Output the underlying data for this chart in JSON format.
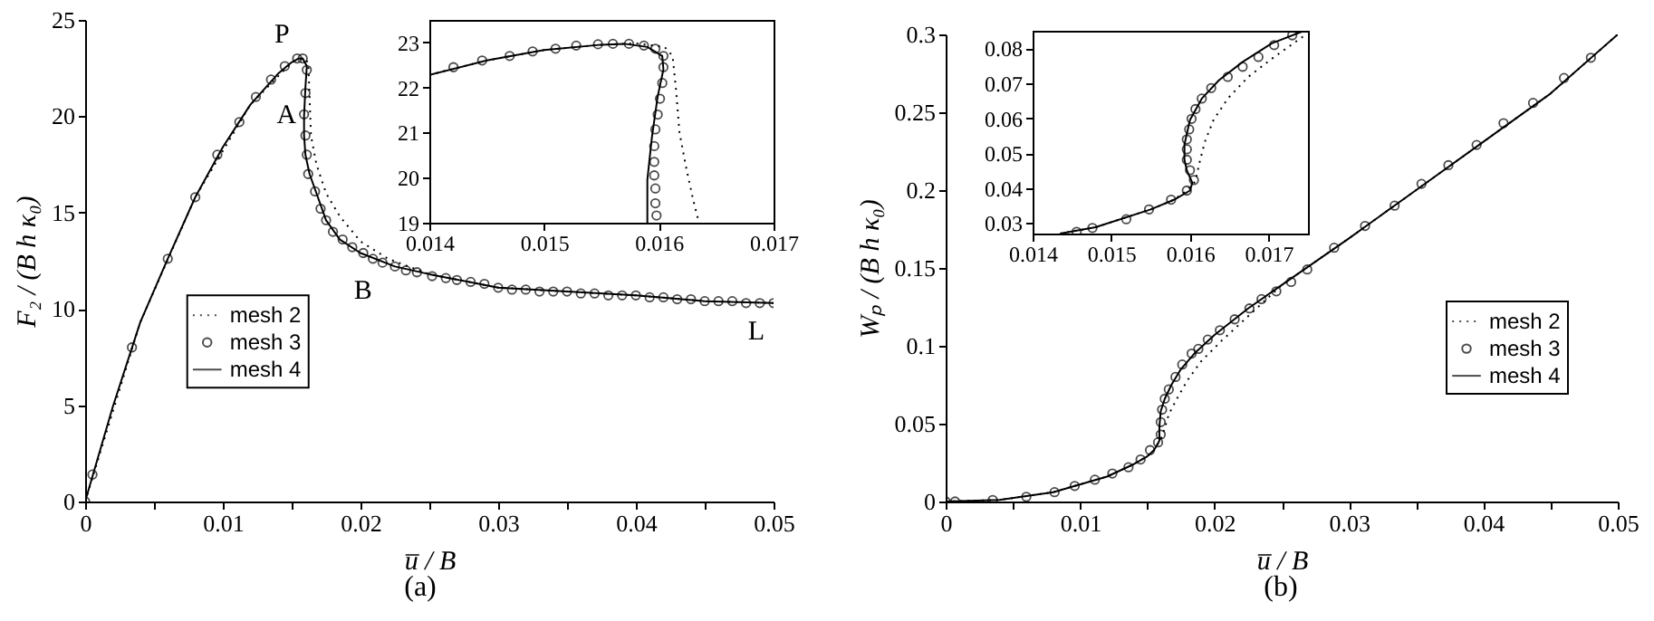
{
  "chart_data": [
    {
      "type": "line",
      "xlabel": "u̅ / B",
      "ylabel": "F₂ / (B h κ₀)",
      "xlim": [
        0,
        0.05
      ],
      "ylim": [
        0,
        25
      ],
      "xticks": [
        0,
        {
          "value": 0.005,
          "label": null
        },
        0.01,
        {
          "value": 0.015,
          "label": null
        },
        0.02,
        {
          "value": 0.025,
          "label": null
        },
        0.03,
        {
          "value": 0.035,
          "label": null
        },
        0.04,
        {
          "value": 0.045,
          "label": null
        },
        0.05
      ],
      "yticks": [
        0,
        5,
        10,
        15,
        20,
        25
      ],
      "legend": "left",
      "series": [
        {
          "name": "mesh 2",
          "color": "#000000",
          "line_style": "dotted",
          "x": [
            0,
            0.004,
            0.008,
            0.012,
            0.015,
            0.0158,
            0.0162,
            0.0163,
            0.0164,
            0.0168,
            0.0175,
            0.0185,
            0.02,
            0.022,
            0.025,
            0.03,
            0.035,
            0.04,
            0.045,
            0.05
          ],
          "values": [
            0,
            9.3,
            15.8,
            20.6,
            22.8,
            23.0,
            22.8,
            21.0,
            19.0,
            17.5,
            16.0,
            14.8,
            13.5,
            12.6,
            11.8,
            11.1,
            10.9,
            10.7,
            10.4,
            10.3
          ]
        },
        {
          "name": "mesh 3",
          "type": "scatter",
          "marker": "circle",
          "color": "#000000",
          "x": [
            0,
            0.00053,
            0.0034,
            0.006,
            0.008,
            0.0096,
            0.0112,
            0.0124,
            0.0135,
            0.0145,
            0.0154,
            0.0158,
            0.0161,
            0.016,
            0.0159,
            0.016,
            0.0161,
            0.0162,
            0.0167,
            0.0171,
            0.0175,
            0.018,
            0.0187,
            0.0194,
            0.0202,
            0.0209,
            0.0216,
            0.0225,
            0.0233,
            0.0241,
            0.0252,
            0.0262,
            0.027,
            0.028,
            0.029,
            0.03,
            0.031,
            0.032,
            0.033,
            0.034,
            0.035,
            0.036,
            0.037,
            0.038,
            0.039,
            0.04,
            0.041,
            0.042,
            0.043,
            0.044,
            0.045,
            0.046,
            0.047,
            0.048,
            0.049,
            0.05
          ],
          "values": [
            0,
            1.4,
            8.0,
            12.6,
            15.8,
            18.0,
            19.7,
            21.0,
            21.9,
            22.6,
            23.0,
            23.0,
            22.4,
            21.2,
            20.1,
            19.0,
            18.0,
            17.0,
            16.1,
            15.2,
            14.6,
            14.0,
            13.6,
            13.2,
            12.9,
            12.6,
            12.4,
            12.2,
            12.0,
            11.9,
            11.7,
            11.6,
            11.5,
            11.4,
            11.3,
            11.1,
            11.0,
            11.0,
            10.9,
            10.9,
            10.9,
            10.8,
            10.8,
            10.7,
            10.7,
            10.7,
            10.6,
            10.6,
            10.5,
            10.5,
            10.4,
            10.4,
            10.4,
            10.3,
            10.3,
            10.3
          ]
        },
        {
          "name": "mesh 4",
          "color": "#000000",
          "line_style": "solid",
          "x": [
            0,
            0.002,
            0.004,
            0.006,
            0.008,
            0.01,
            0.012,
            0.014,
            0.015,
            0.0155,
            0.0158,
            0.0161,
            0.016,
            0.0159,
            0.0159,
            0.016,
            0.0163,
            0.0168,
            0.0175,
            0.0185,
            0.02,
            0.0225,
            0.025,
            0.03,
            0.035,
            0.04,
            0.045,
            0.05
          ],
          "values": [
            0,
            4.9,
            9.3,
            12.6,
            15.8,
            18.4,
            20.6,
            22.2,
            22.8,
            23.0,
            23.0,
            22.6,
            21.5,
            20.0,
            19.0,
            18.0,
            17.0,
            16.0,
            14.6,
            13.6,
            12.9,
            12.2,
            11.8,
            11.1,
            10.9,
            10.7,
            10.4,
            10.3
          ]
        }
      ],
      "annotations": [
        {
          "text": "P",
          "x": 0.0155,
          "y": 23.0
        },
        {
          "text": "A",
          "x": 0.016,
          "y": 18.8
        },
        {
          "text": "B",
          "x": 0.0215,
          "y": 12.4
        },
        {
          "text": "L",
          "x": 0.05,
          "y": 10.3
        },
        "(a)"
      ]
    },
    {
      "type": "line",
      "xlim": [
        0.014,
        0.017
      ],
      "ylim": [
        19,
        23.5
      ],
      "xticks": [
        0.014,
        0.015,
        0.016,
        0.017
      ],
      "yticks": [
        19,
        20,
        21,
        22,
        23
      ],
      "series": [
        {
          "color": "#000000",
          "line_style": "dotted",
          "x": [
            0.014,
            0.0145,
            0.015,
            0.0155,
            0.0158,
            0.01605,
            0.01612,
            0.01615,
            0.01618,
            0.01624,
            0.0163,
            0.01635
          ],
          "values": [
            22.28,
            22.6,
            22.83,
            22.95,
            22.98,
            22.9,
            22.7,
            21.95,
            21.0,
            20.2,
            19.5,
            19.0
          ]
        },
        {
          "type": "scatter",
          "marker": "circle",
          "color": "#000000",
          "x": [
            0.01421,
            0.01446,
            0.0147,
            0.0149,
            0.0151,
            0.01528,
            0.01547,
            0.0156,
            0.01574,
            0.01587,
            0.01597,
            0.01604,
            0.01604,
            0.01603,
            0.01601,
            0.01599,
            0.01597,
            0.01596,
            0.01596,
            0.01596,
            0.01597,
            0.01597,
            0.01598
          ],
          "values": [
            22.45,
            22.6,
            22.7,
            22.8,
            22.86,
            22.93,
            22.96,
            22.97,
            22.97,
            22.93,
            22.86,
            22.7,
            22.45,
            22.1,
            21.75,
            21.4,
            21.07,
            20.7,
            20.35,
            20.05,
            19.76,
            19.43,
            19.16
          ]
        },
        {
          "color": "#000000",
          "line_style": "solid",
          "x": [
            0.014,
            0.0145,
            0.015,
            0.0155,
            0.0157,
            0.0159,
            0.01603,
            0.01604,
            0.01599,
            0.01594,
            0.0159,
            0.0159
          ],
          "values": [
            22.28,
            22.6,
            22.83,
            22.95,
            22.97,
            22.9,
            22.7,
            22.4,
            21.8,
            20.9,
            19.95,
            19.0
          ]
        }
      ]
    },
    {
      "type": "line",
      "xlabel": "u̅ / B",
      "ylabel": "Wₚ / (B h κ₀)",
      "xlim": [
        0,
        0.05
      ],
      "ylim": [
        0,
        0.3
      ],
      "xticks": [
        0,
        {
          "value": 0.005,
          "label": null
        },
        0.01,
        {
          "value": 0.015,
          "label": null
        },
        0.02,
        {
          "value": 0.025,
          "label": null
        },
        0.03,
        {
          "value": 0.035,
          "label": null
        },
        0.04,
        {
          "value": 0.045,
          "label": null
        },
        0.05
      ],
      "yticks": [
        0,
        0.05,
        0.1,
        0.15,
        0.2,
        0.25,
        0.3
      ],
      "legend": "right",
      "series": [
        {
          "name": "mesh 2",
          "color": "#000000",
          "line_style": "dotted",
          "x": [
            0,
            0.004,
            0.008,
            0.012,
            0.014,
            0.015,
            0.0155,
            0.016,
            0.0163,
            0.0166,
            0.0172,
            0.018,
            0.019,
            0.0205,
            0.022,
            0.025,
            0.03,
            0.035,
            0.04,
            0.045,
            0.05
          ],
          "values": [
            0,
            0.001,
            0.006,
            0.016,
            0.024,
            0.029,
            0.033,
            0.04,
            0.047,
            0.056,
            0.066,
            0.078,
            0.09,
            0.103,
            0.115,
            0.139,
            0.169,
            0.2,
            0.231,
            0.262,
            0.3
          ]
        },
        {
          "name": "mesh 3",
          "type": "scatter",
          "marker": "circle",
          "color": "#000000",
          "x": [
            0,
            0.0007,
            0.0035,
            0.006,
            0.0081,
            0.0096,
            0.0111,
            0.0124,
            0.0136,
            0.0145,
            0.0152,
            0.0158,
            0.016,
            0.016,
            0.0161,
            0.0163,
            0.0166,
            0.0171,
            0.0176,
            0.0183,
            0.0188,
            0.0195,
            0.0204,
            0.0215,
            0.0226,
            0.0235,
            0.0246,
            0.0257,
            0.0269,
            0.0289,
            0.0312,
            0.0334,
            0.0354,
            0.0374,
            0.0395,
            0.0415,
            0.0437,
            0.046,
            0.048
          ],
          "values": [
            0,
            0,
            0.001,
            0.003,
            0.006,
            0.01,
            0.014,
            0.018,
            0.022,
            0.027,
            0.033,
            0.038,
            0.043,
            0.051,
            0.059,
            0.066,
            0.072,
            0.08,
            0.088,
            0.095,
            0.098,
            0.104,
            0.11,
            0.117,
            0.124,
            0.13,
            0.135,
            0.141,
            0.149,
            0.163,
            0.177,
            0.19,
            0.204,
            0.216,
            0.229,
            0.243,
            0.256,
            0.272,
            0.285
          ]
        },
        {
          "name": "mesh 4",
          "color": "#000000",
          "line_style": "solid",
          "x": [
            0,
            0.004,
            0.008,
            0.012,
            0.014,
            0.015,
            0.0155,
            0.0159,
            0.0159,
            0.016,
            0.0163,
            0.0168,
            0.0175,
            0.0185,
            0.02,
            0.0225,
            0.025,
            0.03,
            0.035,
            0.04,
            0.045,
            0.05
          ],
          "values": [
            0,
            0.001,
            0.006,
            0.016,
            0.024,
            0.029,
            0.033,
            0.039,
            0.048,
            0.058,
            0.066,
            0.075,
            0.085,
            0.095,
            0.107,
            0.124,
            0.139,
            0.169,
            0.2,
            0.231,
            0.262,
            0.3
          ]
        }
      ],
      "annotations": [
        "(b)"
      ]
    },
    {
      "type": "line",
      "xlim": [
        0.014,
        0.0175
      ],
      "ylim": [
        0.027,
        0.085
      ],
      "xticks": [
        0.014,
        0.015,
        0.016,
        0.017
      ],
      "yticks": [
        0.03,
        0.04,
        0.05,
        0.06,
        0.07,
        0.08
      ],
      "series": [
        {
          "color": "#000000",
          "line_style": "dotted",
          "x": [
            0.01435,
            0.0148,
            0.0155,
            0.0158,
            0.01596,
            0.01607,
            0.01612,
            0.01619,
            0.0163,
            0.01648,
            0.01674,
            0.01704,
            0.01746
          ],
          "values": [
            0.027,
            0.0288,
            0.0339,
            0.0367,
            0.0393,
            0.042,
            0.0472,
            0.0533,
            0.0595,
            0.0656,
            0.0718,
            0.077,
            0.0837
          ]
        },
        {
          "type": "scatter",
          "marker": "circle",
          "color": "#000000",
          "x": [
            0.01456,
            0.01476,
            0.01519,
            0.01548,
            0.01576,
            0.01596,
            0.01605,
            0.016,
            0.01596,
            0.01596,
            0.01596,
            0.01599,
            0.01602,
            0.01607,
            0.01615,
            0.01627,
            0.01648,
            0.01667,
            0.01687,
            0.01707,
            0.0173
          ],
          "values": [
            0.0275,
            0.0286,
            0.0311,
            0.0339,
            0.0367,
            0.0393,
            0.0423,
            0.0451,
            0.0481,
            0.0511,
            0.0539,
            0.0568,
            0.0598,
            0.0626,
            0.0656,
            0.0686,
            0.0718,
            0.0747,
            0.0775,
            0.0809,
            0.0837
          ]
        },
        {
          "color": "#000000",
          "line_style": "solid",
          "x": [
            0.01435,
            0.0148,
            0.0155,
            0.0158,
            0.016,
            0.01603,
            0.01596,
            0.01593,
            0.01593,
            0.016,
            0.01615,
            0.01637,
            0.01667,
            0.01704,
            0.01745
          ],
          "values": [
            0.027,
            0.0288,
            0.0339,
            0.0367,
            0.0393,
            0.0415,
            0.0451,
            0.0481,
            0.0525,
            0.0595,
            0.0656,
            0.0709,
            0.0761,
            0.0814,
            0.085
          ]
        }
      ]
    }
  ]
}
